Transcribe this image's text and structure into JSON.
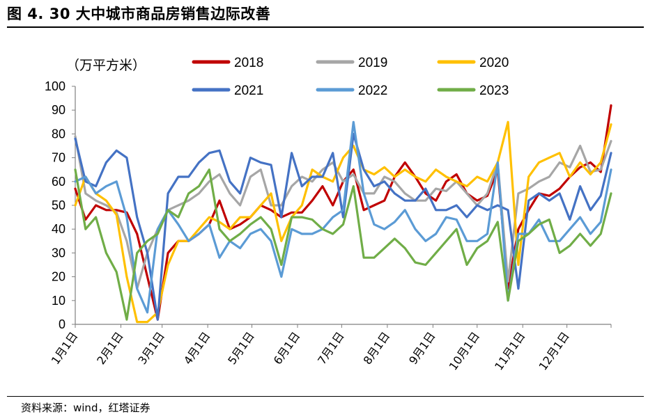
{
  "chart_data": {
    "type": "line",
    "title": "图 4. 30 大中城市商品房销售边际改善",
    "ylabel": "（万平方米）",
    "xlabel": "",
    "ylim": [
      0,
      100
    ],
    "yticks": [
      0,
      10,
      20,
      30,
      40,
      50,
      60,
      70,
      80,
      90,
      100
    ],
    "xticks": [
      "1月1日",
      "2月1日",
      "3月1日",
      "4月1日",
      "5月1日",
      "6月1日",
      "7月1日",
      "8月1日",
      "9月1日",
      "10月1日",
      "11月1日",
      "12月1日"
    ],
    "x_unit": "day of year",
    "x": [
      1,
      8,
      15,
      22,
      29,
      36,
      43,
      50,
      57,
      64,
      71,
      78,
      85,
      92,
      99,
      106,
      113,
      120,
      127,
      134,
      141,
      148,
      155,
      162,
      169,
      176,
      183,
      190,
      197,
      204,
      211,
      218,
      225,
      232,
      239,
      246,
      253,
      260,
      267,
      274,
      281,
      288,
      295,
      302,
      309,
      316,
      323,
      330,
      337,
      344,
      351,
      358,
      365
    ],
    "legend_position": "top",
    "grid": false,
    "series": [
      {
        "name": "2018",
        "color": "#C00000",
        "values": [
          57,
          44,
          50,
          48,
          48,
          47,
          38,
          20,
          2,
          30,
          35,
          35,
          38,
          42,
          52,
          40,
          42,
          45,
          50,
          48,
          45,
          47,
          47,
          52,
          58,
          50,
          60,
          65,
          48,
          50,
          52,
          62,
          68,
          62,
          55,
          52,
          60,
          63,
          55,
          52,
          54,
          65,
          15,
          40,
          48,
          55,
          54,
          57,
          62,
          66,
          68,
          64,
          92
        ]
      },
      {
        "name": "2019",
        "color": "#A6A6A6",
        "values": [
          79,
          55,
          52,
          50,
          47,
          35,
          15,
          30,
          40,
          48,
          50,
          52,
          55,
          60,
          63,
          55,
          50,
          62,
          65,
          50,
          50,
          58,
          62,
          60,
          65,
          68,
          60,
          63,
          55,
          55,
          62,
          60,
          55,
          52,
          52,
          57,
          56,
          60,
          55,
          50,
          55,
          68,
          18,
          55,
          57,
          60,
          62,
          68,
          66,
          75,
          64,
          65,
          77
        ]
      },
      {
        "name": "2020",
        "color": "#FFC000",
        "values": [
          50,
          62,
          55,
          52,
          46,
          20,
          1,
          1,
          5,
          25,
          35,
          35,
          40,
          45,
          43,
          40,
          45,
          45,
          50,
          55,
          35,
          45,
          50,
          65,
          62,
          60,
          70,
          75,
          65,
          63,
          66,
          62,
          65,
          62,
          60,
          65,
          62,
          60,
          58,
          62,
          60,
          68,
          85,
          25,
          62,
          68,
          70,
          72,
          62,
          68,
          63,
          68,
          84
        ]
      },
      {
        "name": "2021",
        "color": "#4472C4",
        "values": [
          78,
          60,
          58,
          68,
          73,
          70,
          45,
          30,
          2,
          55,
          62,
          62,
          68,
          72,
          73,
          60,
          55,
          70,
          68,
          67,
          45,
          72,
          58,
          62,
          62,
          72,
          45,
          80,
          65,
          58,
          60,
          55,
          52,
          52,
          57,
          48,
          48,
          50,
          45,
          50,
          48,
          50,
          48,
          15,
          52,
          55,
          52,
          55,
          44,
          58,
          48,
          54,
          72
        ]
      },
      {
        "name": "2022",
        "color": "#5B9BD5",
        "values": [
          60,
          62,
          55,
          58,
          60,
          45,
          15,
          5,
          40,
          48,
          42,
          35,
          38,
          42,
          28,
          35,
          32,
          38,
          40,
          35,
          20,
          40,
          38,
          38,
          40,
          45,
          48,
          85,
          55,
          42,
          40,
          43,
          48,
          40,
          35,
          38,
          45,
          44,
          35,
          35,
          38,
          68,
          10,
          38,
          38,
          44,
          35,
          35,
          40,
          45,
          38,
          43,
          65
        ]
      },
      {
        "name": "2023",
        "color": "#70AD47",
        "values": [
          65,
          40,
          45,
          30,
          22,
          2,
          30,
          35,
          38,
          48,
          45,
          55,
          58,
          65,
          40,
          35,
          38,
          42,
          45,
          40,
          25,
          45,
          45,
          44,
          40,
          38,
          42,
          58,
          28,
          28,
          32,
          36,
          32,
          26,
          25,
          30,
          35,
          40,
          25,
          32,
          35,
          43,
          10,
          35,
          38,
          42,
          44,
          30,
          33,
          38,
          33,
          38,
          55
        ]
      }
    ]
  },
  "source": "资料来源：wind，红塔证券"
}
